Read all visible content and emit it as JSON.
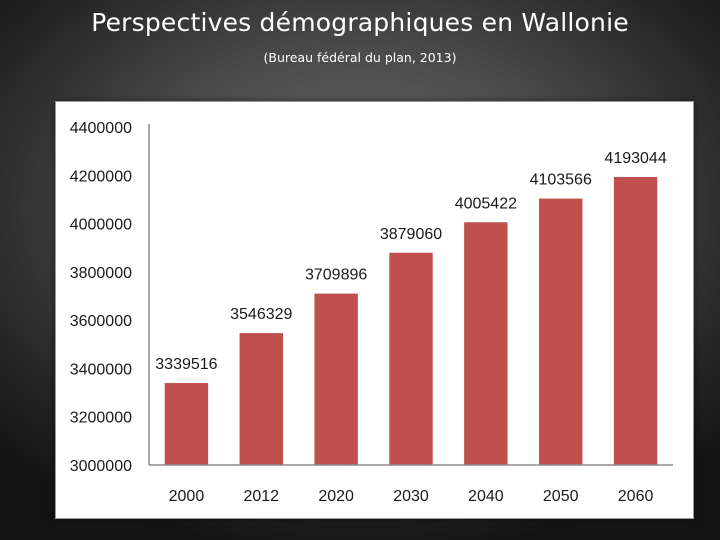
{
  "slide": {
    "title": "Perspectives démographiques en Wallonie",
    "subtitle": "(Bureau fédéral du plan, 2013)"
  },
  "colors": {
    "bar": "#c0504d",
    "axis": "#8c8c8c"
  },
  "chart_data": {
    "type": "bar",
    "categories": [
      "2000",
      "2012",
      "2020",
      "2030",
      "2040",
      "2050",
      "2060"
    ],
    "values": [
      3339516,
      3546329,
      3709896,
      3879060,
      4005422,
      4103566,
      4193044
    ],
    "data_labels": [
      "3339516",
      "3546329",
      "3709896",
      "3879060",
      "4005422",
      "4103566",
      "4193044"
    ],
    "yticks": [
      "3000000",
      "3200000",
      "3400000",
      "3600000",
      "3800000",
      "4000000",
      "4200000",
      "4400000"
    ],
    "ylim": [
      3000000,
      4400000
    ],
    "grid": false,
    "legend": "none"
  }
}
